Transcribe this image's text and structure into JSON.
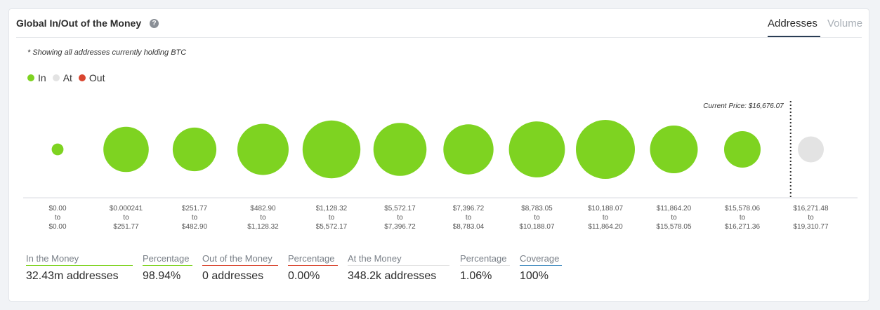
{
  "header": {
    "title": "Global In/Out of the Money",
    "help_icon": "question-circle-icon",
    "tabs": [
      {
        "label": "Addresses",
        "active": true
      },
      {
        "label": "Volume",
        "active": false
      }
    ]
  },
  "note": "* Showing all addresses currently holding BTC",
  "legend": [
    {
      "label": "In",
      "color": "#7ed321"
    },
    {
      "label": "At",
      "color": "#e3e3e3"
    },
    {
      "label": "Out",
      "color": "#d9452f"
    }
  ],
  "chart_data": {
    "type": "bubble",
    "current_price_label": "Current Price: $16,676.07",
    "ranges": [
      {
        "from": "$0.00",
        "to": "$0.00",
        "status": "In",
        "size": 0.2
      },
      {
        "from": "$0.000241",
        "to": "$251.77",
        "status": "In",
        "size": 0.77
      },
      {
        "from": "$251.77",
        "to": "$482.90",
        "status": "In",
        "size": 0.74
      },
      {
        "from": "$482.90",
        "to": "$1,128.32",
        "status": "In",
        "size": 0.87
      },
      {
        "from": "$1,128.32",
        "to": "$5,572.17",
        "status": "In",
        "size": 0.98
      },
      {
        "from": "$5,572.17",
        "to": "$7,396.72",
        "status": "In",
        "size": 0.9
      },
      {
        "from": "$7,396.72",
        "to": "$8,783.04",
        "status": "In",
        "size": 0.85
      },
      {
        "from": "$8,783.05",
        "to": "$10,188.07",
        "status": "In",
        "size": 0.95
      },
      {
        "from": "$10,188.07",
        "to": "$11,864.20",
        "status": "In",
        "size": 1.0
      },
      {
        "from": "$11,864.20",
        "to": "$15,578.05",
        "status": "In",
        "size": 0.81
      },
      {
        "from": "$15,578.06",
        "to": "$16,271.36",
        "status": "In",
        "size": 0.62
      },
      {
        "from": "$16,271.48",
        "to": "$19,310.77",
        "status": "At",
        "size": 0.44
      }
    ],
    "to_word": "to"
  },
  "stats": [
    {
      "label": "In the Money",
      "value": "32.43m addresses",
      "color": "#7ed321"
    },
    {
      "label": "Percentage",
      "value": "98.94%",
      "color": "#7ed321"
    },
    {
      "label": "Out of the Money",
      "value": "0 addresses",
      "color": "#d9452f"
    },
    {
      "label": "Percentage",
      "value": "0.00%",
      "color": "#d9452f"
    },
    {
      "label": "At the Money",
      "value": "348.2k addresses",
      "color": "#e3e3e3"
    },
    {
      "label": "Percentage",
      "value": "1.06%",
      "color": "#e3e3e3"
    },
    {
      "label": "Coverage",
      "value": "100%",
      "color": "#4a90c2"
    }
  ]
}
